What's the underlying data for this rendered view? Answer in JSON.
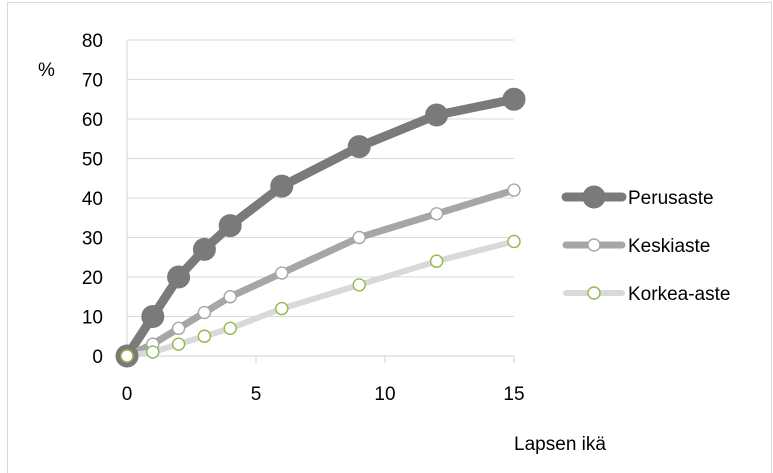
{
  "chart_data": {
    "type": "line",
    "title": "",
    "ylabel": "%",
    "xlabel": "Lapsen ikä",
    "xlim": [
      0,
      15
    ],
    "ylim": [
      0,
      80
    ],
    "xticks": [
      0,
      5,
      10,
      15
    ],
    "yticks": [
      0,
      10,
      20,
      30,
      40,
      50,
      60,
      70,
      80
    ],
    "grid": "horizontal",
    "legend_position": "right",
    "series": [
      {
        "name": "Perusaste",
        "color": "#7a7a7a",
        "marker_fill": "#7a7a7a",
        "marker_stroke": "#7a7a7a",
        "x": [
          0,
          1,
          2,
          3,
          4,
          6,
          9,
          12,
          15
        ],
        "y": [
          0,
          10,
          20,
          27,
          33,
          43,
          53,
          61,
          65
        ]
      },
      {
        "name": "Keskiaste",
        "color": "#a6a6a6",
        "marker_fill": "#ffffff",
        "marker_stroke": "#a6a6a6",
        "x": [
          0,
          1,
          2,
          3,
          4,
          6,
          9,
          12,
          15
        ],
        "y": [
          0,
          3,
          7,
          11,
          15,
          21,
          30,
          36,
          42
        ]
      },
      {
        "name": "Korkea-aste",
        "color": "#d9d9d9",
        "marker_fill": "#ffffff",
        "marker_stroke": "#92b94e",
        "x": [
          0,
          1,
          2,
          3,
          4,
          6,
          9,
          12,
          15
        ],
        "y": [
          0,
          1,
          3,
          5,
          7,
          12,
          18,
          24,
          29
        ]
      }
    ]
  }
}
